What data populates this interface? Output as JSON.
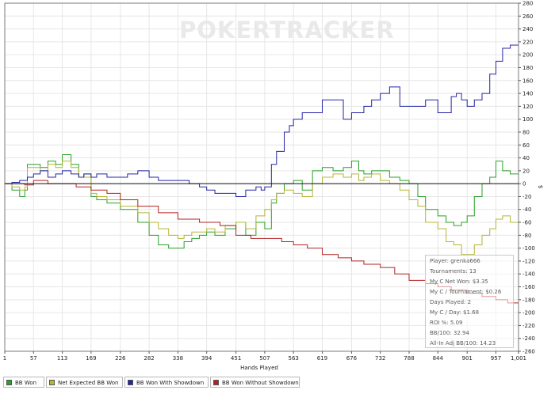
{
  "chart_data": {
    "type": "line",
    "title": "",
    "watermark": "POKERTRACKER",
    "xlabel": "Hands Played",
    "ylabel": "$",
    "xlim": [
      1,
      1001
    ],
    "ylim": [
      -260,
      280
    ],
    "x_ticks": [
      "1",
      "57",
      "113",
      "169",
      "226",
      "282",
      "338",
      "394",
      "451",
      "507",
      "563",
      "619",
      "676",
      "732",
      "788",
      "844",
      "901",
      "957",
      "1,001"
    ],
    "y_ticks": [
      280,
      260,
      240,
      220,
      200,
      180,
      160,
      140,
      120,
      100,
      80,
      60,
      40,
      20,
      0,
      -20,
      -40,
      -60,
      -80,
      -100,
      -120,
      -140,
      -160,
      -180,
      -200,
      -220,
      -240,
      -260
    ],
    "grid": true,
    "series": [
      {
        "name": "BB Won",
        "color": "#2aa02a",
        "x": [
          1,
          15,
          30,
          40,
          45,
          57,
          70,
          85,
          100,
          113,
          130,
          145,
          155,
          169,
          180,
          200,
          226,
          240,
          260,
          282,
          300,
          320,
          338,
          350,
          365,
          380,
          394,
          410,
          430,
          451,
          470,
          490,
          507,
          520,
          530,
          545,
          563,
          580,
          600,
          619,
          640,
          660,
          676,
          690,
          700,
          715,
          732,
          750,
          770,
          788,
          805,
          820,
          844,
          860,
          875,
          890,
          901,
          915,
          930,
          945,
          957,
          970,
          985,
          1001
        ],
        "y": [
          0,
          -10,
          -20,
          -10,
          30,
          30,
          25,
          35,
          30,
          45,
          30,
          10,
          15,
          -20,
          -25,
          -30,
          -40,
          -40,
          -60,
          -80,
          -95,
          -100,
          -100,
          -90,
          -85,
          -80,
          -75,
          -80,
          -70,
          -60,
          -80,
          -60,
          -70,
          -30,
          -15,
          0,
          5,
          -10,
          20,
          25,
          20,
          25,
          35,
          20,
          15,
          20,
          20,
          10,
          5,
          0,
          -20,
          -40,
          -50,
          -60,
          -65,
          -60,
          -50,
          -20,
          0,
          10,
          35,
          20,
          15,
          5
        ]
      },
      {
        "name": "Net Expected BB Won",
        "color": "#b5b534",
        "x": [
          1,
          15,
          30,
          40,
          45,
          57,
          70,
          85,
          100,
          113,
          130,
          145,
          155,
          169,
          180,
          200,
          226,
          240,
          260,
          282,
          300,
          320,
          338,
          350,
          365,
          380,
          394,
          410,
          430,
          451,
          470,
          490,
          507,
          520,
          530,
          545,
          563,
          580,
          600,
          619,
          640,
          660,
          676,
          690,
          700,
          715,
          732,
          750,
          770,
          788,
          805,
          820,
          844,
          860,
          875,
          890,
          901,
          915,
          930,
          945,
          957,
          970,
          985,
          1001
        ],
        "y": [
          0,
          -5,
          -10,
          -5,
          25,
          25,
          20,
          30,
          25,
          35,
          25,
          10,
          10,
          -15,
          -20,
          -25,
          -35,
          -35,
          -45,
          -60,
          -70,
          -80,
          -85,
          -80,
          -75,
          -75,
          -70,
          -75,
          -65,
          -60,
          -70,
          -50,
          -40,
          -25,
          -15,
          -10,
          -15,
          -20,
          0,
          10,
          15,
          10,
          15,
          5,
          10,
          15,
          5,
          0,
          -10,
          -25,
          -35,
          -60,
          -70,
          -90,
          -95,
          -110,
          -110,
          -95,
          -80,
          -70,
          -55,
          -50,
          -60,
          -70
        ]
      },
      {
        "name": "BB Won With Showdown",
        "color": "#2424a8",
        "x": [
          1,
          15,
          30,
          45,
          57,
          70,
          85,
          100,
          113,
          130,
          145,
          155,
          169,
          180,
          200,
          226,
          240,
          260,
          282,
          300,
          320,
          338,
          360,
          380,
          394,
          410,
          430,
          451,
          470,
          480,
          490,
          500,
          507,
          520,
          530,
          545,
          555,
          563,
          580,
          600,
          619,
          640,
          660,
          676,
          690,
          700,
          715,
          732,
          750,
          770,
          788,
          805,
          820,
          844,
          860,
          870,
          880,
          890,
          901,
          915,
          930,
          945,
          957,
          970,
          985,
          1001
        ],
        "y": [
          0,
          2,
          5,
          10,
          15,
          20,
          10,
          15,
          20,
          15,
          10,
          15,
          10,
          15,
          10,
          10,
          15,
          20,
          10,
          5,
          5,
          5,
          0,
          -5,
          -10,
          -15,
          -15,
          -20,
          -10,
          -10,
          -5,
          -10,
          -5,
          30,
          50,
          80,
          90,
          100,
          110,
          110,
          130,
          130,
          100,
          110,
          110,
          120,
          130,
          140,
          150,
          120,
          120,
          120,
          130,
          110,
          110,
          135,
          140,
          130,
          120,
          130,
          140,
          170,
          190,
          210,
          215,
          200
        ]
      },
      {
        "name": "BB Won Without Showdown",
        "color": "#b22222",
        "x": [
          1,
          40,
          57,
          85,
          113,
          140,
          169,
          200,
          226,
          260,
          300,
          338,
          380,
          420,
          451,
          480,
          507,
          540,
          563,
          590,
          619,
          650,
          676,
          700,
          732,
          760,
          788,
          820,
          844,
          870,
          901,
          930,
          957,
          980,
          1001
        ],
        "y": [
          0,
          -2,
          5,
          0,
          0,
          -5,
          -10,
          -15,
          -25,
          -35,
          -45,
          -55,
          -60,
          -65,
          -80,
          -85,
          -85,
          -90,
          -95,
          -100,
          -110,
          -115,
          -120,
          -125,
          -130,
          -140,
          -150,
          -155,
          -160,
          -165,
          -170,
          -175,
          -180,
          -185,
          -190
        ]
      }
    ],
    "stats": [
      "Player: grenka666",
      "Tournaments: 13",
      "My C Net Won: $3.35",
      "My C / Tournament: $0.26",
      "Days Played: 2",
      "My C / Day: $1.68",
      "ROI %: 5.09",
      "BB/100: 32.94",
      "All-In Adj BB/100: 14.23"
    ],
    "legend": [
      {
        "label": "BB Won",
        "color": "#2aa02a"
      },
      {
        "label": "Net Expected BB Won",
        "color": "#b5b534"
      },
      {
        "label": "BB Won With Showdown",
        "color": "#2424a8"
      },
      {
        "label": "BB Won Without Showdown",
        "color": "#b22222"
      }
    ]
  }
}
